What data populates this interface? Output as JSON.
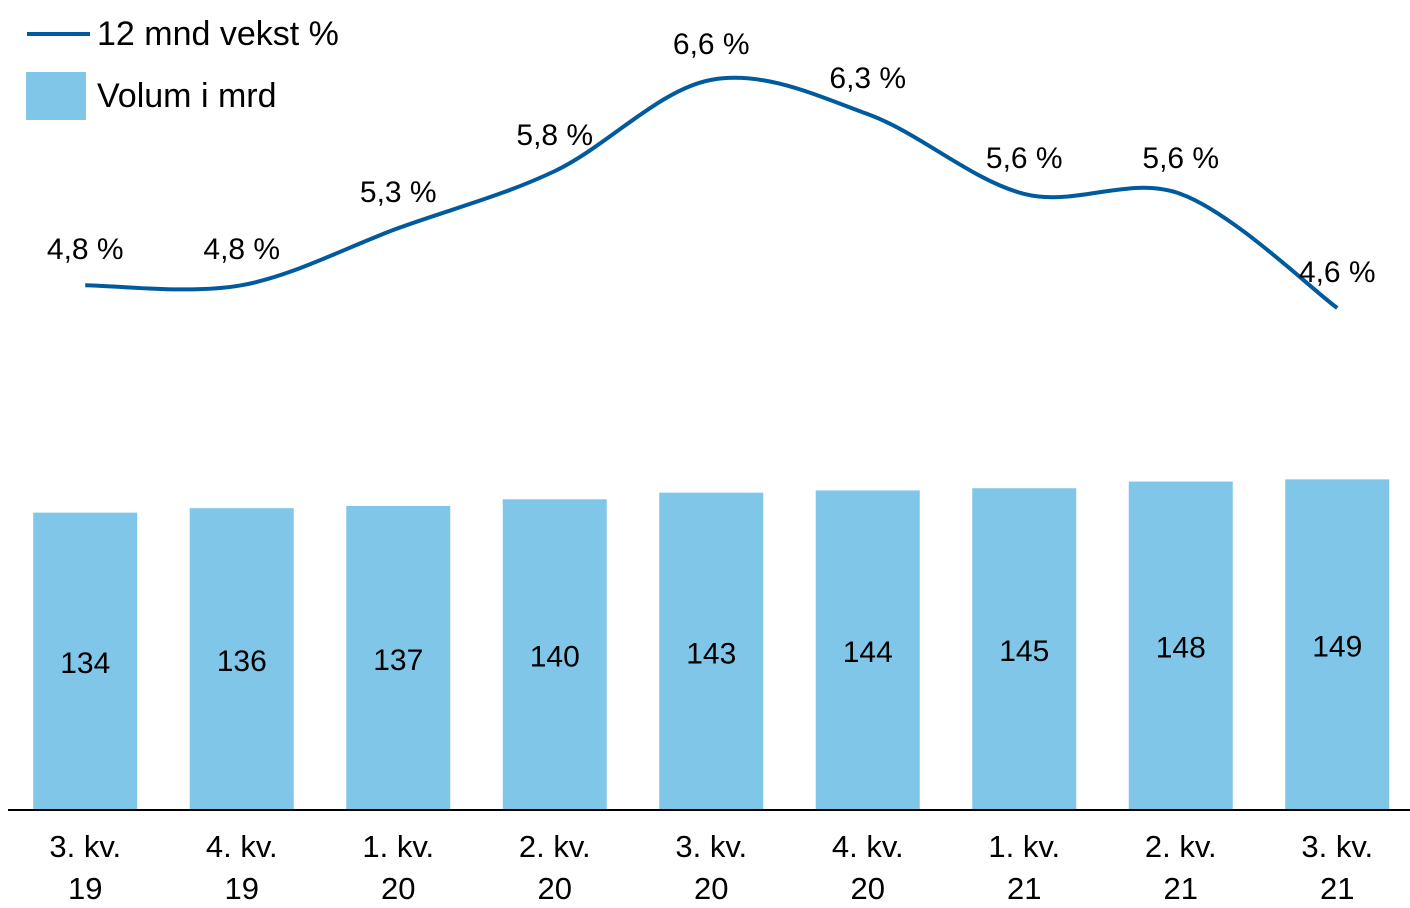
{
  "chart_data": {
    "type": "combo",
    "categories": [
      "3. kv. 19",
      "4. kv. 19",
      "1. kv. 20",
      "2. kv. 20",
      "3. kv. 20",
      "4. kv. 20",
      "1. kv. 21",
      "2. kv. 21",
      "3. kv. 21"
    ],
    "series": [
      {
        "name": "12 mnd vekst %",
        "type": "line",
        "axis": "y2",
        "color": "#005a9e",
        "values": [
          4.8,
          4.8,
          5.3,
          5.8,
          6.6,
          6.3,
          5.6,
          5.6,
          4.6
        ],
        "value_labels": [
          "4,8 %",
          "4,8 %",
          "5,3 %",
          "5,8 %",
          "6,6 %",
          "6,3 %",
          "5,6 %",
          "5,6 %",
          "4,6 %"
        ]
      },
      {
        "name": "Volum i mrd",
        "type": "bar",
        "color": "#80c6e8",
        "values": [
          134,
          136,
          137,
          140,
          143,
          144,
          145,
          148,
          149
        ]
      }
    ],
    "ylim": [
      0,
      365
    ],
    "y2lim": [
      0.2,
      7.3
    ],
    "legend": "top-left"
  }
}
